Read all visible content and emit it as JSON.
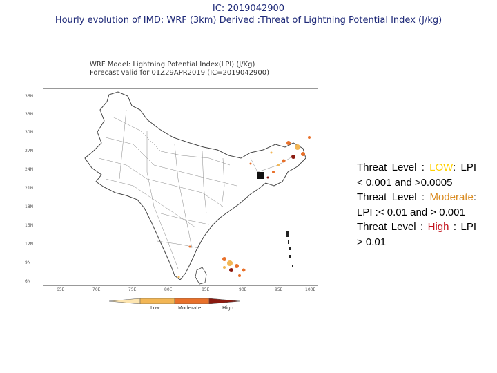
{
  "header": {
    "line1": "IC: 2019042900",
    "line2": "Hourly evolution of IMD: WRF (3km) Derived :Threat of Lightning Potential Index (J/kg)"
  },
  "map": {
    "title_line1": "WRF Model: Lightning Potential Index(LPI) (J/Kg)",
    "title_line2": "Forecast valid for 01Z29APR2019 (IC=2019042900)",
    "lat_labels": [
      "36N",
      "33N",
      "30N",
      "27N",
      "24N",
      "21N",
      "18N",
      "15N",
      "12N",
      "9N",
      "6N"
    ],
    "lon_labels": [
      "65E",
      "70E",
      "75E",
      "80E",
      "85E",
      "90E",
      "95E",
      "100E"
    ],
    "colorbar_labels": [
      "Low",
      "Moderate",
      "High"
    ],
    "colors": {
      "low": "#f2b655",
      "moderate": "#e8702a",
      "high": "#8b1a10",
      "land": "#ffffff",
      "border": "#555555"
    }
  },
  "legend": {
    "line1_prefix": "Threat Level : ",
    "low_word": "LOW",
    "line1_suffix": ":",
    "line2": "LPI < 0.001 and >0.0005",
    "line3_prefix": "Threat Level : ",
    "moderate_word": "Moderate",
    "line3_suffix": ": LPI :< 0.01 and > 0.001",
    "line4_prefix": "Threat Level : ",
    "high_word": "High",
    "line4_suffix": " : LPI > 0.01"
  }
}
